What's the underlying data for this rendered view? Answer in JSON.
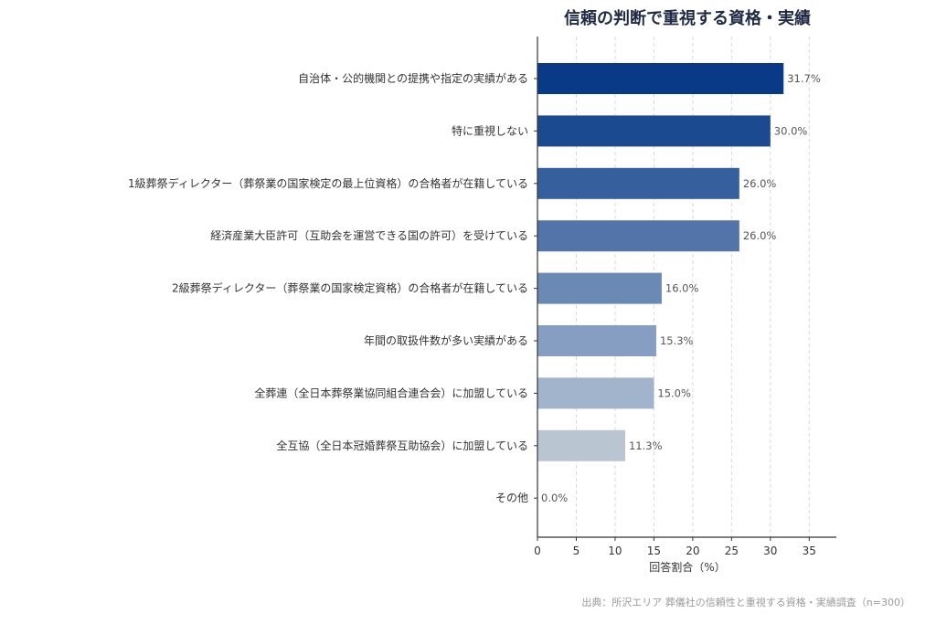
{
  "chart_data": {
    "type": "bar",
    "orientation": "horizontal",
    "title": "信頼の判断で重視する資格・実績",
    "xlabel": "回答割合（%）",
    "ylabel": "",
    "xlim": [
      0,
      38.5
    ],
    "xticks": [
      0,
      5,
      10,
      15,
      20,
      25,
      30,
      35
    ],
    "grid": "x-dashed",
    "categories": [
      "自治体・公的機関との提携や指定の実績がある",
      "特に重視しない",
      "1級葬祭ディレクター（葬祭業の国家検定の最上位資格）の合格者が在籍している",
      "経済産業大臣許可（互助会を運営できる国の許可）を受けている",
      "2級葬祭ディレクター（葬祭業の国家検定資格）の合格者が在籍している",
      "年間の取扱件数が多い実績がある",
      "全葬連（全日本葬祭業協同組合連合会）に加盟している",
      "全互協（全日本冠婚葬祭互助協会）に加盟している",
      "その他"
    ],
    "values": [
      31.7,
      30.0,
      26.0,
      26.0,
      16.0,
      15.3,
      15.0,
      11.3,
      0.0
    ],
    "value_labels": [
      "31.7%",
      "30.0%",
      "26.0%",
      "26.0%",
      "16.0%",
      "15.3%",
      "15.0%",
      "11.3%",
      "0.0%"
    ],
    "colors": [
      "#083a87",
      "#1b4a90",
      "#365f9e",
      "#5274a9",
      "#6b89b5",
      "#869ec1",
      "#a2b3cc",
      "#b9c6d2",
      "#cdd6df"
    ],
    "source": "出典：所沢エリア 葬儀社の信頼性と重視する資格・実績調査（n=300）"
  }
}
